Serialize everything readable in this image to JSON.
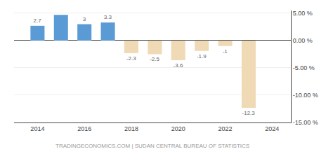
{
  "chart_data": {
    "type": "bar",
    "x": [
      2014,
      2015,
      2016,
      2017,
      2018,
      2019,
      2020,
      2021,
      2022,
      2023
    ],
    "values": [
      2.7,
      4.7,
      3.0,
      3.3,
      -2.3,
      -2.5,
      -3.6,
      -1.9,
      -1.0,
      -12.3
    ],
    "value_labels": [
      "2.7",
      null,
      "3",
      "3.3",
      "-2.3",
      "-2.5",
      "-3.6",
      "-1.9",
      "-1",
      "-12.3"
    ],
    "data_labels": true,
    "colors": [
      "#5b9bd5",
      "#5b9bd5",
      "#5b9bd5",
      "#5b9bd5",
      "#f0d9b5",
      "#f0d9b5",
      "#f0d9b5",
      "#f0d9b5",
      "#f0d9b5",
      "#f0d9b5"
    ],
    "xlim": [
      2013.0,
      2024.8
    ],
    "xticks": [
      2014,
      2016,
      2018,
      2020,
      2022,
      2024
    ],
    "ylim": [
      -15,
      5.5
    ],
    "yticks": [
      {
        "value": 5.0,
        "label": "5.00 %"
      },
      {
        "value": 0.0,
        "label": "0.00 %"
      },
      {
        "value": -5.0,
        "label": "-5.00 %"
      },
      {
        "value": -10.0,
        "label": "-10.00 %"
      },
      {
        "value": -15.0,
        "label": "-15.00 %"
      }
    ],
    "grid": true,
    "annotations": [
      "TRADINGECONOMICS.COM | SUDAN CENTRAL BUREAU OF STATISTICS"
    ]
  }
}
